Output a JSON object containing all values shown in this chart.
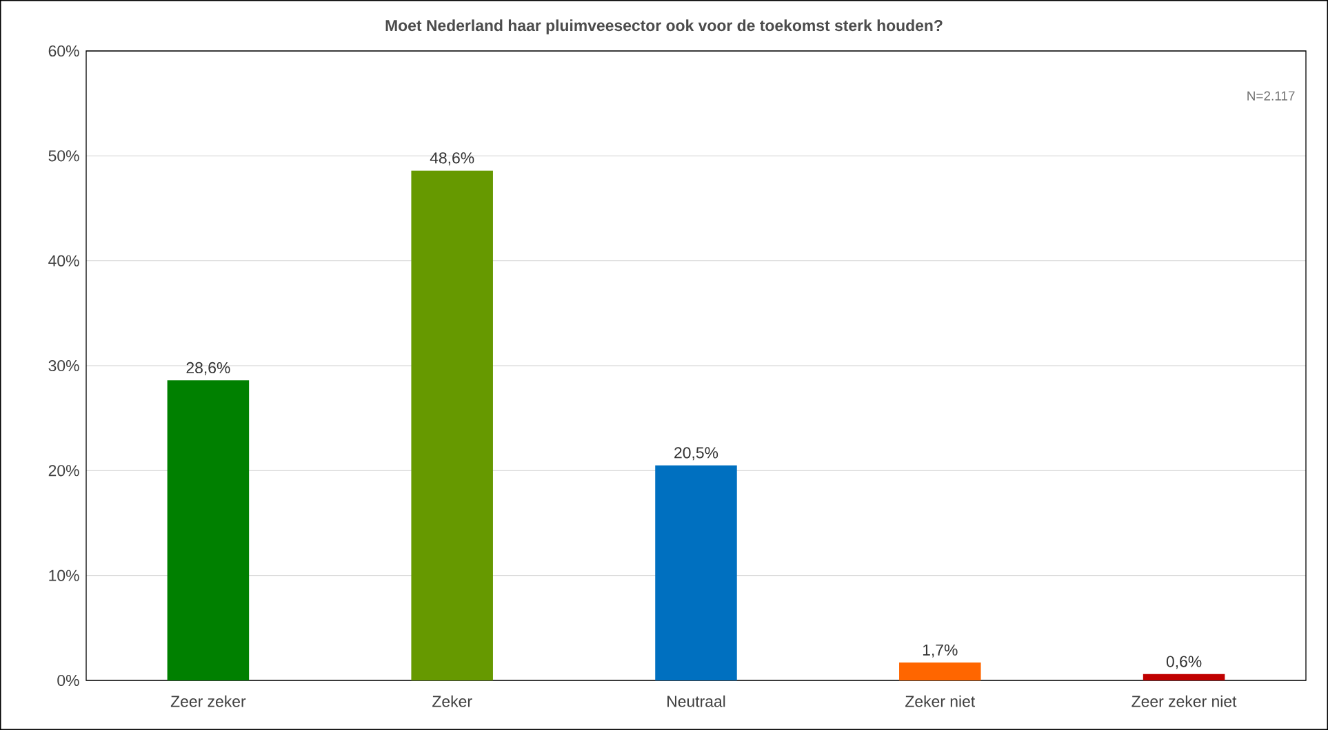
{
  "chart_data": {
    "type": "bar",
    "title": "Moet Nederland haar pluimveesector ook voor de toekomst sterk houden?",
    "categories": [
      "Zeer zeker",
      "Zeker",
      "Neutraal",
      "Zeker niet",
      "Zeer zeker niet"
    ],
    "values": [
      28.6,
      48.6,
      20.5,
      1.7,
      0.6
    ],
    "colors": [
      "#008000",
      "#669900",
      "#0070c0",
      "#ff6600",
      "#c00000"
    ],
    "value_labels": [
      "28,6%",
      "48,6%",
      "20,5%",
      "1,7%",
      "0,6%"
    ],
    "ylim": [
      0,
      60
    ],
    "yticks": [
      {
        "value": 0,
        "label": "0%"
      },
      {
        "value": 10,
        "label": "10%"
      },
      {
        "value": 20,
        "label": "20%"
      },
      {
        "value": 30,
        "label": "30%"
      },
      {
        "value": 40,
        "label": "40%"
      },
      {
        "value": 50,
        "label": "50%"
      },
      {
        "value": 60,
        "label": "60%"
      }
    ],
    "grid": "y",
    "annotations": [
      "N=2.117"
    ]
  }
}
